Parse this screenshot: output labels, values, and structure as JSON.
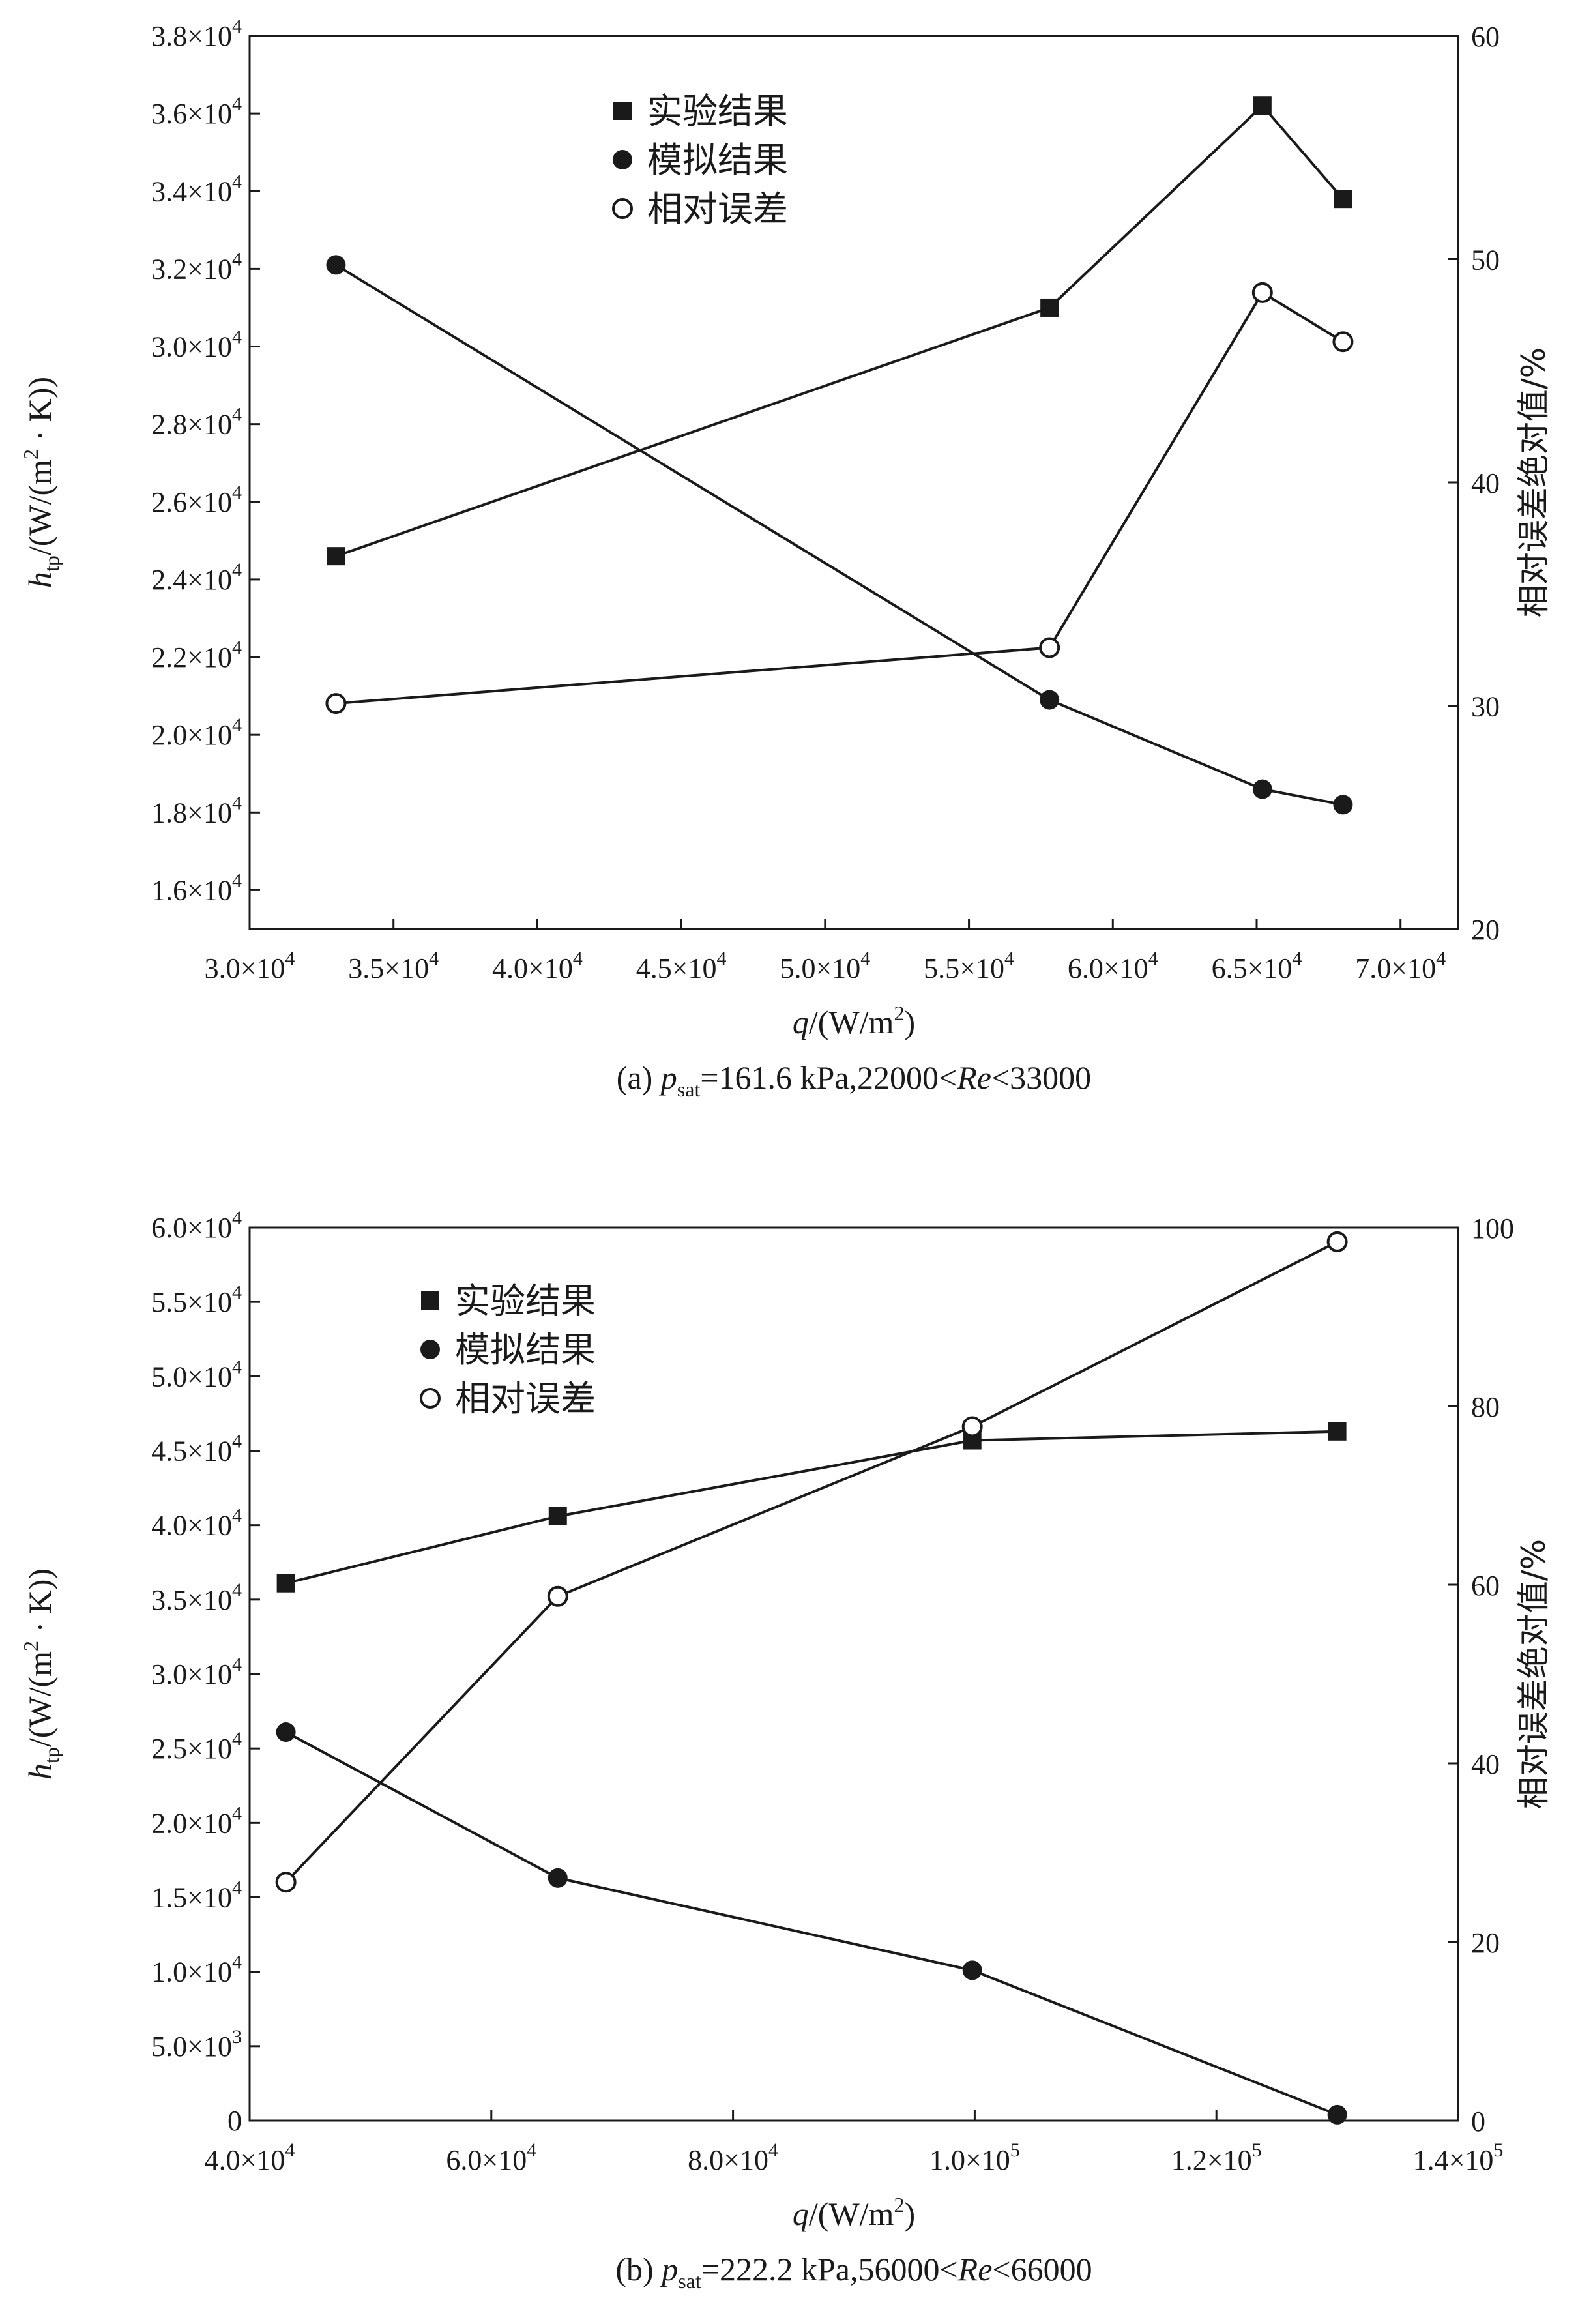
{
  "chart_data": [
    {
      "type": "line",
      "caption": {
        "panel": "(a) ",
        "p_main": "p",
        "p_sub": "sat",
        "rest": "=161.6 kPa,22000<",
        "re": "Re",
        "tail": "<33000"
      },
      "xlabel": {
        "main": "q",
        "rest": "/(W/m",
        "sup": "2",
        "close": ")"
      },
      "ylabel_left": {
        "main": "h",
        "sub": "tp",
        "rest": "/(W/(m",
        "sup": "2",
        "tail": " · K))"
      },
      "ylabel_right": "相对误差绝对值/%",
      "xlim": [
        30000,
        72000
      ],
      "ylim_left": [
        15000,
        38000
      ],
      "ylim_right": [
        20,
        60
      ],
      "x_ticks": [
        {
          "value": 30000,
          "mant": "3.0×10",
          "exp": "4"
        },
        {
          "value": 35000,
          "mant": "3.5×10",
          "exp": "4"
        },
        {
          "value": 40000,
          "mant": "4.0×10",
          "exp": "4"
        },
        {
          "value": 45000,
          "mant": "4.5×10",
          "exp": "4"
        },
        {
          "value": 50000,
          "mant": "5.0×10",
          "exp": "4"
        },
        {
          "value": 55000,
          "mant": "5.5×10",
          "exp": "4"
        },
        {
          "value": 60000,
          "mant": "6.0×10",
          "exp": "4"
        },
        {
          "value": 65000,
          "mant": "6.5×10",
          "exp": "4"
        },
        {
          "value": 70000,
          "mant": "7.0×10",
          "exp": "4"
        }
      ],
      "y_left_ticks": [
        {
          "value": 16000,
          "mant": "1.6×10",
          "exp": "4"
        },
        {
          "value": 18000,
          "mant": "1.8×10",
          "exp": "4"
        },
        {
          "value": 20000,
          "mant": "2.0×10",
          "exp": "4"
        },
        {
          "value": 22000,
          "mant": "2.2×10",
          "exp": "4"
        },
        {
          "value": 24000,
          "mant": "2.4×10",
          "exp": "4"
        },
        {
          "value": 26000,
          "mant": "2.6×10",
          "exp": "4"
        },
        {
          "value": 28000,
          "mant": "2.8×10",
          "exp": "4"
        },
        {
          "value": 30000,
          "mant": "3.0×10",
          "exp": "4"
        },
        {
          "value": 32000,
          "mant": "3.2×10",
          "exp": "4"
        },
        {
          "value": 34000,
          "mant": "3.4×10",
          "exp": "4"
        },
        {
          "value": 36000,
          "mant": "3.6×10",
          "exp": "4"
        },
        {
          "value": 38000,
          "mant": "3.8×10",
          "exp": "4"
        }
      ],
      "y_right_ticks": [
        20,
        30,
        40,
        50,
        60
      ],
      "legend": {
        "placement": "top-center"
      },
      "series": [
        {
          "name": "实验结果",
          "marker": "square",
          "axis": "left",
          "x": [
            33000,
            57800,
            65200,
            68000
          ],
          "values": [
            24600,
            31000,
            36200,
            33800
          ]
        },
        {
          "name": "模拟结果",
          "marker": "circle-filled",
          "axis": "left",
          "x": [
            33000,
            57800,
            65200,
            68000
          ],
          "values": [
            32100,
            20900,
            18600,
            18200
          ]
        },
        {
          "name": "相对误差",
          "marker": "circle-open",
          "axis": "right",
          "x": [
            33000,
            57800,
            65200,
            68000
          ],
          "values": [
            30.1,
            32.6,
            48.5,
            46.3
          ]
        }
      ]
    },
    {
      "type": "line",
      "caption": {
        "panel": "(b) ",
        "p_main": "p",
        "p_sub": "sat",
        "rest": "=222.2 kPa,56000<",
        "re": "Re",
        "tail": "<66000"
      },
      "xlabel": {
        "main": "q",
        "rest": "/(W/m",
        "sup": "2",
        "close": ")"
      },
      "ylabel_left": {
        "main": "h",
        "sub": "tp",
        "rest": "/(W/(m",
        "sup": "2",
        "tail": " · K))"
      },
      "ylabel_right": "相对误差绝对值/%",
      "xlim": [
        40000,
        140000
      ],
      "ylim_left": [
        0,
        60000
      ],
      "ylim_right": [
        0,
        100
      ],
      "x_ticks": [
        {
          "value": 40000,
          "mant": "4.0×10",
          "exp": "4"
        },
        {
          "value": 60000,
          "mant": "6.0×10",
          "exp": "4"
        },
        {
          "value": 80000,
          "mant": "8.0×10",
          "exp": "4"
        },
        {
          "value": 100000,
          "mant": "1.0×10",
          "exp": "5"
        },
        {
          "value": 120000,
          "mant": "1.2×10",
          "exp": "5"
        },
        {
          "value": 140000,
          "mant": "1.4×10",
          "exp": "5"
        }
      ],
      "y_left_ticks": [
        {
          "value": 0,
          "mant": "0",
          "exp": ""
        },
        {
          "value": 5000,
          "mant": "5.0×10",
          "exp": "3"
        },
        {
          "value": 10000,
          "mant": "1.0×10",
          "exp": "4"
        },
        {
          "value": 15000,
          "mant": "1.5×10",
          "exp": "4"
        },
        {
          "value": 20000,
          "mant": "2.0×10",
          "exp": "4"
        },
        {
          "value": 25000,
          "mant": "2.5×10",
          "exp": "4"
        },
        {
          "value": 30000,
          "mant": "3.0×10",
          "exp": "4"
        },
        {
          "value": 35000,
          "mant": "3.5×10",
          "exp": "4"
        },
        {
          "value": 40000,
          "mant": "4.0×10",
          "exp": "4"
        },
        {
          "value": 45000,
          "mant": "4.5×10",
          "exp": "4"
        },
        {
          "value": 50000,
          "mant": "5.0×10",
          "exp": "4"
        },
        {
          "value": 55000,
          "mant": "5.5×10",
          "exp": "4"
        },
        {
          "value": 60000,
          "mant": "6.0×10",
          "exp": "4"
        }
      ],
      "y_right_ticks": [
        0,
        20,
        40,
        60,
        80,
        100
      ],
      "legend": {
        "placement": "top-left"
      },
      "series": [
        {
          "name": "实验结果",
          "marker": "square",
          "axis": "left",
          "x": [
            43000,
            65500,
            99800,
            130000
          ],
          "values": [
            36100,
            40600,
            45700,
            46300
          ]
        },
        {
          "name": "模拟结果",
          "marker": "circle-filled",
          "axis": "left",
          "x": [
            43000,
            65500,
            99800,
            130000
          ],
          "values": [
            26100,
            16300,
            10100,
            400
          ]
        },
        {
          "name": "相对误差",
          "marker": "circle-open",
          "axis": "right",
          "x": [
            43000,
            65500,
            99800,
            130000
          ],
          "values": [
            26.7,
            58.7,
            77.7,
            98.4
          ]
        }
      ]
    }
  ]
}
